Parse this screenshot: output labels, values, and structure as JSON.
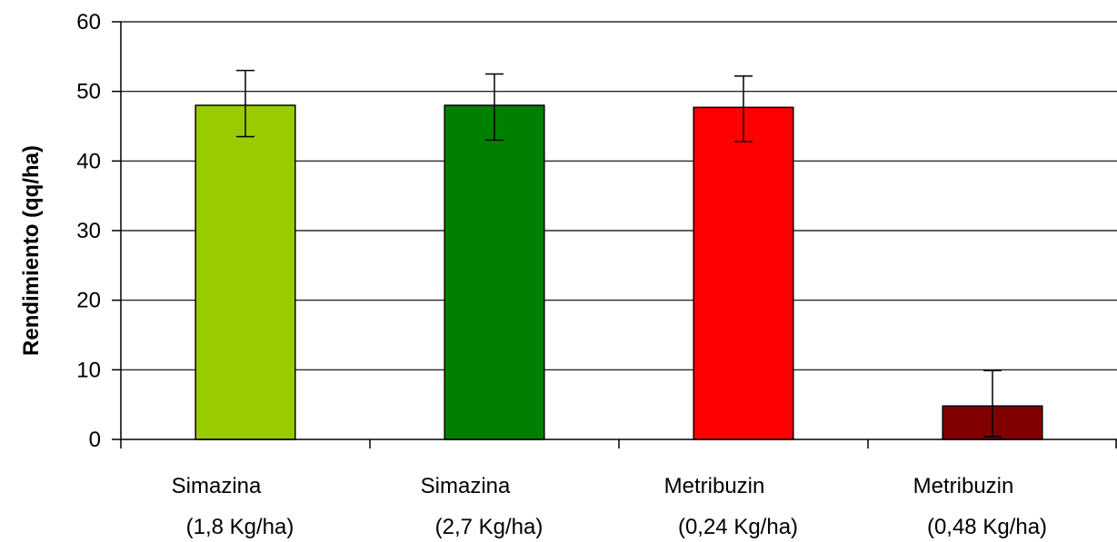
{
  "chart_data": {
    "type": "bar",
    "ylabel": "Rendimiento (qq/ha)",
    "ylim": [
      0,
      60
    ],
    "yticks": [
      0,
      10,
      20,
      30,
      40,
      50,
      60
    ],
    "grid": true,
    "categories": [
      {
        "line1": "Simazina",
        "line2": "(1,8 Kg/ha)"
      },
      {
        "line1": "Simazina",
        "line2": "(2,7 Kg/ha)"
      },
      {
        "line1": "Metribuzin",
        "line2": "(0,24 Kg/ha)"
      },
      {
        "line1": "Metribuzin",
        "line2": "(0,48 Kg/ha)"
      }
    ],
    "values": [
      48,
      48,
      47.7,
      4.8
    ],
    "error_upper": [
      53,
      52.5,
      52.2,
      9.9
    ],
    "error_lower": [
      43.5,
      43,
      42.8,
      0.4
    ],
    "colors": [
      "#99cc00",
      "#008000",
      "#ff0000",
      "#800000"
    ]
  }
}
